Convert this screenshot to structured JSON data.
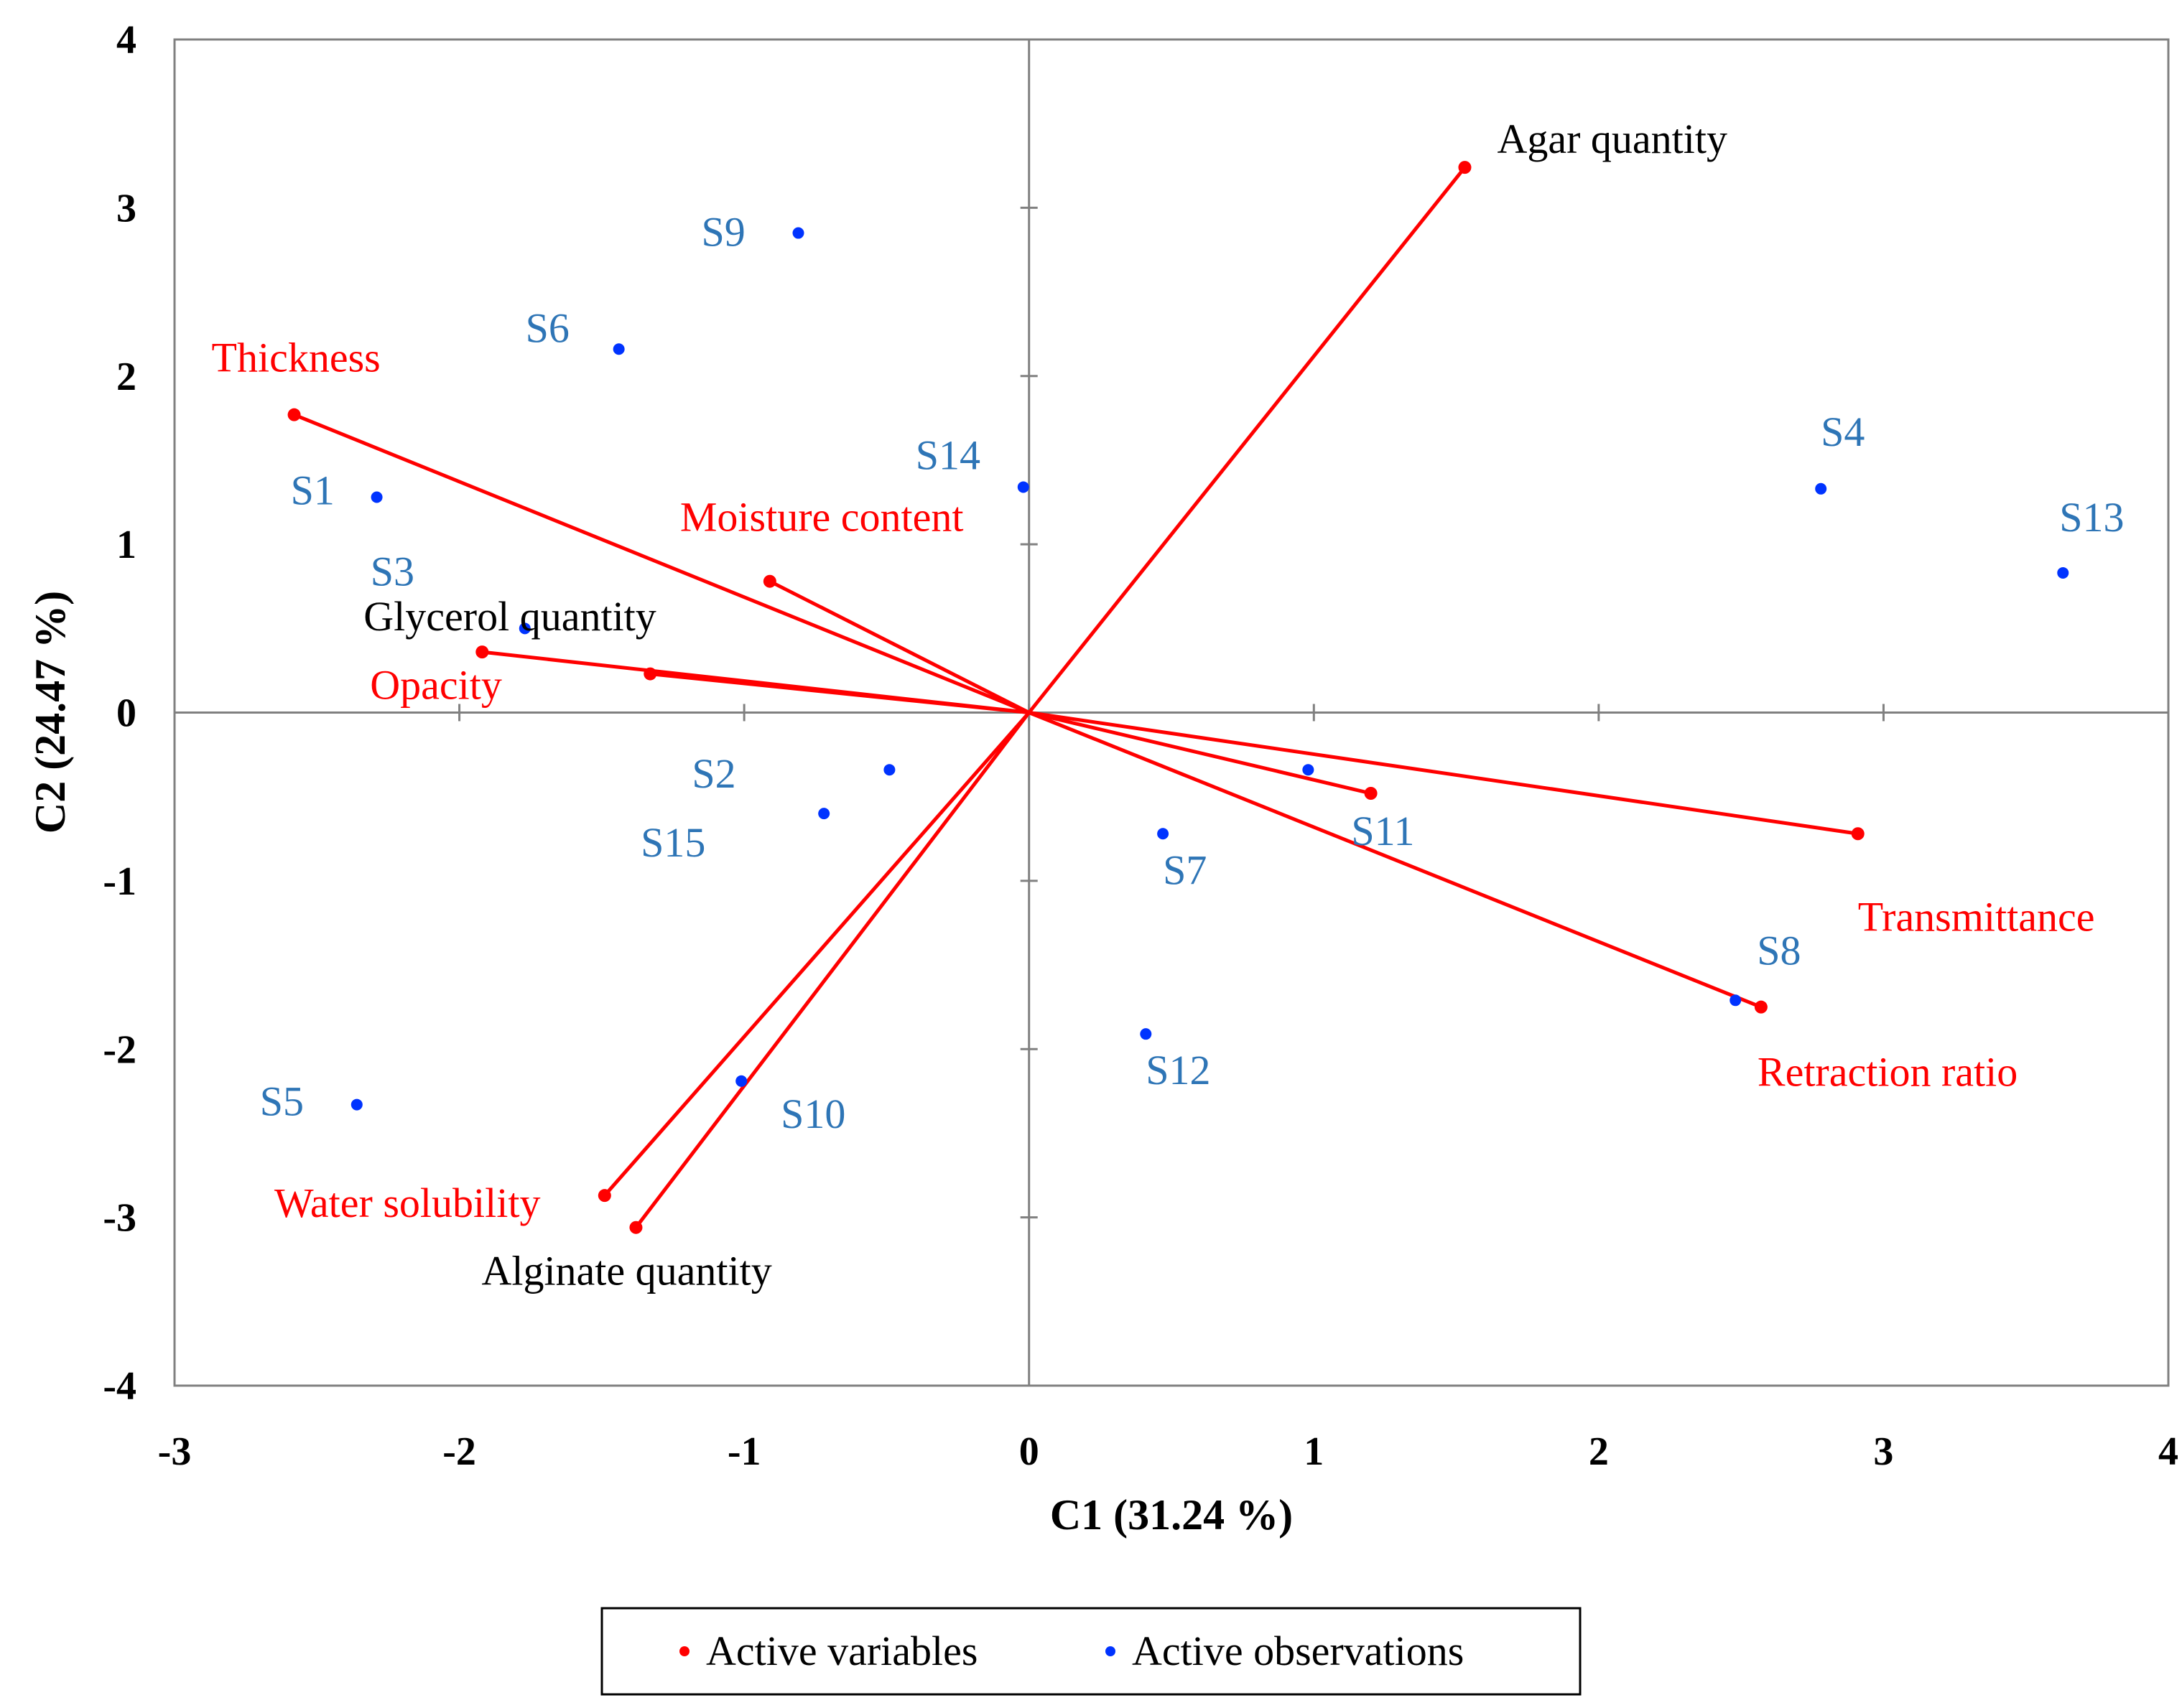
{
  "chart_data": {
    "type": "scatter",
    "subtype": "pca-biplot",
    "xlabel": "C1 (31.24 %)",
    "ylabel": "C2 (24.47 %)",
    "xlim": [
      -3,
      4
    ],
    "ylim": [
      -4,
      4
    ],
    "xticks": [
      "-3",
      "-2",
      "-1",
      "0",
      "1",
      "2",
      "3",
      "4"
    ],
    "yticks": [
      "4",
      "3",
      "2",
      "1",
      "0",
      "-1",
      "-2",
      "-3",
      "-4"
    ],
    "colors": {
      "variables": "#ff0000",
      "observations": "#0033ff",
      "observation_labels": "#2e75b6",
      "supplementary_labels": "#000000",
      "axis": "#808080"
    },
    "variables": [
      {
        "name": "Agar quantity",
        "x": 1.53,
        "y": 3.24,
        "label_color": "#000000"
      },
      {
        "name": "Thickness",
        "x": -2.58,
        "y": 1.77,
        "label_color": "#ff0000"
      },
      {
        "name": "Moisture content",
        "x": -0.91,
        "y": 0.78,
        "label_color": "#ff0000"
      },
      {
        "name": "Glycerol quantity",
        "x": -1.92,
        "y": 0.36,
        "label_color": "#000000"
      },
      {
        "name": "Opacity",
        "x": -1.33,
        "y": 0.23,
        "label_color": "#ff0000"
      },
      {
        "name": "Transmittance",
        "x": 2.91,
        "y": -0.72,
        "label_color": "#ff0000"
      },
      {
        "name": "Retraction ratio",
        "x": 2.57,
        "y": -1.75,
        "label_color": "#ff0000"
      },
      {
        "name": "Water solubility",
        "x": -1.49,
        "y": -2.87,
        "label_color": "#ff0000"
      },
      {
        "name": "Alginate quantity",
        "x": -1.38,
        "y": -3.06,
        "label_color": "#000000"
      },
      {
        "name": "",
        "x": 1.2,
        "y": -0.48,
        "label_color": "#ff0000"
      }
    ],
    "observations": [
      {
        "name": "S1",
        "x": -2.29,
        "y": 1.28
      },
      {
        "name": "S2",
        "x": -0.49,
        "y": -0.34
      },
      {
        "name": "S3",
        "x": -1.77,
        "y": 0.5
      },
      {
        "name": "S4",
        "x": 2.78,
        "y": 1.33
      },
      {
        "name": "S5",
        "x": -2.36,
        "y": -2.33
      },
      {
        "name": "S6",
        "x": -1.44,
        "y": 2.16
      },
      {
        "name": "S7",
        "x": 0.47,
        "y": -0.72
      },
      {
        "name": "S8",
        "x": 2.48,
        "y": -1.71
      },
      {
        "name": "S9",
        "x": -0.81,
        "y": 2.85
      },
      {
        "name": "S10",
        "x": -1.01,
        "y": -2.19
      },
      {
        "name": "S11",
        "x": 0.98,
        "y": -0.34
      },
      {
        "name": "S12",
        "x": 0.41,
        "y": -1.91
      },
      {
        "name": "S13",
        "x": 3.63,
        "y": 0.83
      },
      {
        "name": "S14",
        "x": -0.02,
        "y": 1.34
      },
      {
        "name": "S15",
        "x": -0.72,
        "y": -0.6
      }
    ],
    "legend": {
      "position": "bottom-center",
      "items": [
        {
          "label": "Active variables",
          "color": "#ff0000"
        },
        {
          "label": "Active observations",
          "color": "#0033ff"
        }
      ]
    }
  }
}
